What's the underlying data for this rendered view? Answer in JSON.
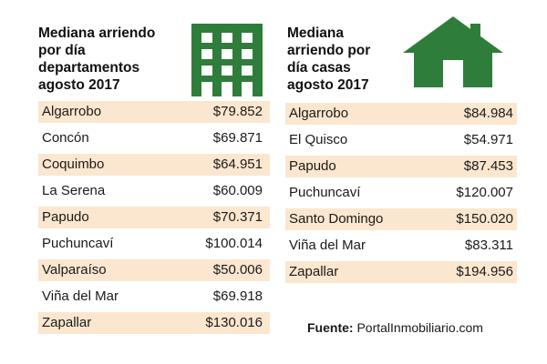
{
  "colors": {
    "icon_green": "#2f7d3a",
    "row_shade": "#fbe7cf"
  },
  "left": {
    "title": "Mediana arriendo\npor día\ndepartamentos\nagosto 2017",
    "icon": "apartment-building-icon",
    "rows": [
      {
        "name": "Algarrobo",
        "price": "$79.852"
      },
      {
        "name": "Concón",
        "price": "$69.871"
      },
      {
        "name": "Coquimbo",
        "price": "$64.951"
      },
      {
        "name": "La Serena",
        "price": "$60.009"
      },
      {
        "name": "Papudo",
        "price": "$70.371"
      },
      {
        "name": "Puchuncaví",
        "price": "$100.014"
      },
      {
        "name": "Valparaíso",
        "price": "$50.006"
      },
      {
        "name": "Viña del Mar",
        "price": "$69.918"
      },
      {
        "name": "Zapallar",
        "price": "$130.016"
      }
    ]
  },
  "right": {
    "title": "Mediana\narriendo por\ndía casas\nagosto 2017",
    "icon": "house-icon",
    "rows": [
      {
        "name": "Algarrobo",
        "price": "$84.984"
      },
      {
        "name": "El Quisco",
        "price": "$54.971"
      },
      {
        "name": "Papudo",
        "price": "$87.453"
      },
      {
        "name": "Puchuncaví",
        "price": "$120.007"
      },
      {
        "name": "Santo Domingo",
        "price": "$150.020"
      },
      {
        "name": "Viña del Mar",
        "price": "$83.311"
      },
      {
        "name": "Zapallar",
        "price": "$194.956"
      }
    ]
  },
  "source": {
    "label": "Fuente:",
    "value": "PortalInmobiliario.com"
  }
}
